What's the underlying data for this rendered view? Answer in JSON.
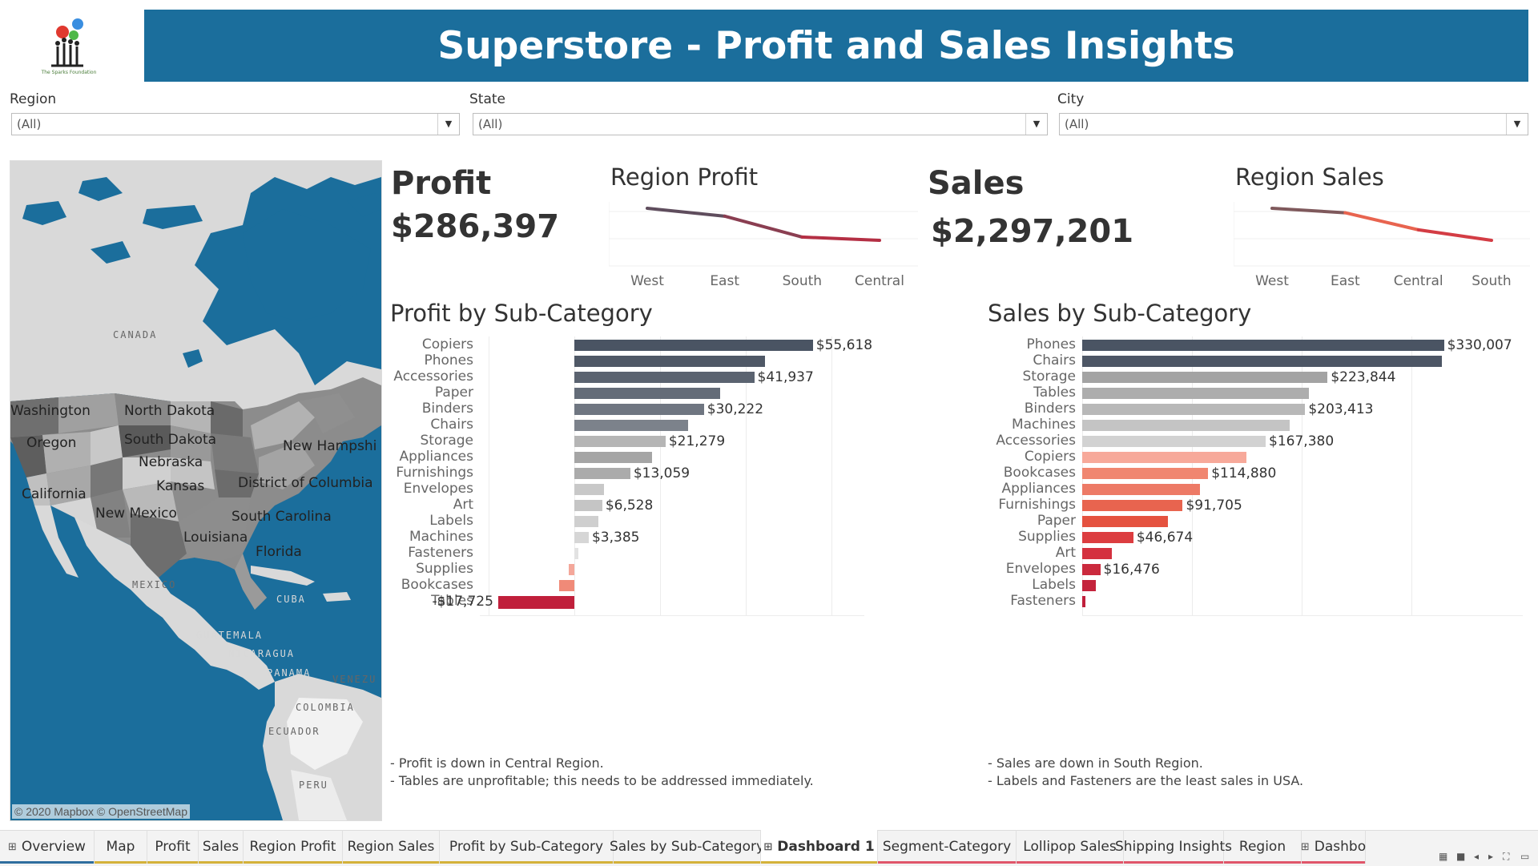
{
  "header": {
    "title": "Superstore - Profit and Sales Insights",
    "logo_caption": "The Sparks Foundation"
  },
  "filters": [
    {
      "label": "Region",
      "value": "(All)"
    },
    {
      "label": "State",
      "value": "(All)"
    },
    {
      "label": "City",
      "value": "(All)"
    }
  ],
  "map": {
    "states": [
      "Washington",
      "North Dakota",
      "Oregon",
      "South Dakota",
      "New Hampshi",
      "Nebraska",
      "Kansas",
      "District of Columbia",
      "California",
      "New Mexico",
      "South Carolina",
      "Louisiana",
      "Florida"
    ],
    "countries": [
      "CANADA",
      "MEXICO",
      "CUBA",
      "GUATEMALA",
      "NICARAGUA",
      "PANAMA",
      "VENEZU",
      "COLOMBIA",
      "ECUADOR",
      "PERU"
    ],
    "credit": "© 2020 Mapbox © OpenStreetMap",
    "colors": {
      "water": "#1b6e9c",
      "land": "#d9d9d9"
    }
  },
  "profit_kpi": {
    "title": "Profit",
    "value": "$286,397"
  },
  "sales_kpi": {
    "title": "Sales",
    "value": "$2,297,201"
  },
  "chart_data": [
    {
      "type": "line",
      "title": "Region Profit",
      "categories": [
        "West",
        "East",
        "South",
        "Central"
      ],
      "values": [
        108418,
        91523,
        46749,
        39706
      ],
      "colors": [
        "#4a5463",
        "#c9283e"
      ]
    },
    {
      "type": "line",
      "title": "Region Sales",
      "categories": [
        "West",
        "East",
        "Central",
        "South"
      ],
      "values": [
        725458,
        678781,
        501240,
        391722
      ],
      "colors": [
        "#4a5463",
        "#e8644f",
        "#c9283e"
      ]
    },
    {
      "type": "bar",
      "title": "Profit by Sub-Category",
      "categories": [
        "Copiers",
        "Phones",
        "Accessories",
        "Paper",
        "Binders",
        "Chairs",
        "Storage",
        "Appliances",
        "Furnishings",
        "Envelopes",
        "Art",
        "Labels",
        "Machines",
        "Fasteners",
        "Supplies",
        "Bookcases",
        "Tables"
      ],
      "values": [
        55618,
        44516,
        41937,
        34054,
        30222,
        26590,
        21279,
        18138,
        13059,
        6964,
        6528,
        5546,
        3385,
        950,
        -1189,
        -3473,
        -17725
      ],
      "data_labels": {
        "Copiers": "$55,618",
        "Accessories": "$41,937",
        "Binders": "$30,222",
        "Storage": "$21,279",
        "Furnishings": "$13,059",
        "Art": "$6,528",
        "Machines": "$3,385",
        "Tables": "-$17,725"
      },
      "colors": [
        "#4a5463",
        "#4f5866",
        "#5b6370",
        "#646c78",
        "#6f7681",
        "#7c828b",
        "#b5b5b5",
        "#a5a5a5",
        "#ababab",
        "#c8c8c8",
        "#c5c5c5",
        "#cfcfcf",
        "#d6d6d6",
        "#e2e2e2",
        "#f4a79a",
        "#f08a78",
        "#c01f3b"
      ],
      "gridlines": [
        -20000,
        0,
        20000,
        40000,
        60000
      ]
    },
    {
      "type": "bar",
      "title": "Sales by Sub-Category",
      "categories": [
        "Phones",
        "Chairs",
        "Storage",
        "Tables",
        "Binders",
        "Machines",
        "Accessories",
        "Copiers",
        "Bookcases",
        "Appliances",
        "Furnishings",
        "Paper",
        "Supplies",
        "Art",
        "Envelopes",
        "Labels",
        "Fasteners"
      ],
      "values": [
        330007,
        328449,
        223844,
        206966,
        203413,
        189239,
        167380,
        149528,
        114880,
        107532,
        91705,
        78479,
        46674,
        27119,
        16476,
        12486,
        3024
      ],
      "data_labels": {
        "Phones": "$330,007",
        "Storage": "$223,844",
        "Binders": "$203,413",
        "Accessories": "$167,380",
        "Bookcases": "$114,880",
        "Furnishings": "$91,705",
        "Supplies": "$46,674",
        "Envelopes": "$16,476"
      },
      "colors": [
        "#4a5463",
        "#4d5665",
        "#a3a3a3",
        "#adadad",
        "#b8b8b8",
        "#c4c4c4",
        "#d2d2d2",
        "#f7a99a",
        "#f08670",
        "#ed7a66",
        "#e8644f",
        "#e5523f",
        "#dc3d40",
        "#d4313f",
        "#cb2a3d",
        "#c4243c",
        "#c01f3b"
      ],
      "gridlines": [
        0,
        100000,
        200000,
        300000
      ]
    }
  ],
  "notes": {
    "profit": [
      "- Profit is down in Central Region.",
      "- Tables are unprofitable; this needs to be addressed immediately."
    ],
    "sales": [
      "- Sales are down in South Region.",
      "- Labels and Fasteners are the least sales in USA."
    ]
  },
  "tabs": [
    {
      "label": "Overview",
      "icon": "dashboard-icon",
      "underline": "#2f6e9e"
    },
    {
      "label": "Map",
      "underline": "#d4b23a"
    },
    {
      "label": "Profit",
      "underline": "#d4b23a"
    },
    {
      "label": "Sales",
      "underline": "#d4b23a"
    },
    {
      "label": "Region Profit",
      "underline": "#d4b23a"
    },
    {
      "label": "Region Sales",
      "underline": "#d4b23a"
    },
    {
      "label": "Profit by Sub-Category",
      "underline": "#d4b23a"
    },
    {
      "label": "Sales by Sub-Category",
      "underline": "#d4b23a"
    },
    {
      "label": "Dashboard 1",
      "icon": "dashboard-icon",
      "underline": "#d4b23a",
      "active": true
    },
    {
      "label": "Segment-Category",
      "underline": "#e0566a"
    },
    {
      "label": "Lollipop Sales",
      "underline": "#e0566a"
    },
    {
      "label": "Shipping Insights",
      "underline": "#e0566a"
    },
    {
      "label": "Region",
      "underline": "#e0566a"
    },
    {
      "label": "Dashbo",
      "icon": "dashboard-icon",
      "underline": "#e0566a"
    }
  ]
}
